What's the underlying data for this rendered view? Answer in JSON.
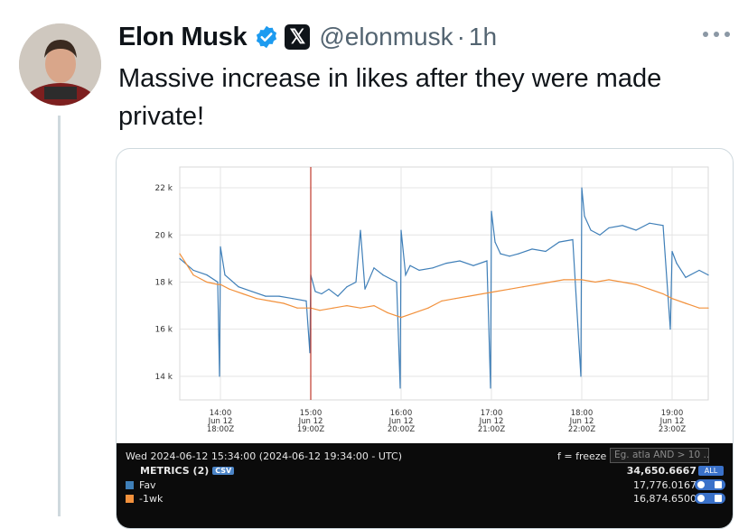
{
  "tweet": {
    "author_name": "Elon Musk",
    "handle": "@elonmusk",
    "separator": "·",
    "time": "1h",
    "x_badge": "𝕏",
    "text": "Massive increase in likes after they were made private!"
  },
  "icons": {
    "verified": "verified-badge-icon",
    "x_logo": "x-logo-icon",
    "more": "more-options-icon"
  },
  "colors": {
    "fav": "#3f7fb8",
    "minus_1wk": "#f2913c",
    "marker": "#c0392b",
    "verified": "#1d9bf0"
  },
  "chart_data": {
    "type": "line",
    "ylim": [
      13000,
      22500
    ],
    "yticks": [
      "14 k",
      "16 k",
      "18 k",
      "20 k",
      "22 k"
    ],
    "ytick_values": [
      14000,
      16000,
      18000,
      20000,
      22000
    ],
    "xticks": [
      {
        "time": "14:00",
        "date": "Jun 12",
        "utc": "18:00Z"
      },
      {
        "time": "15:00",
        "date": "Jun 12",
        "utc": "19:00Z"
      },
      {
        "time": "16:00",
        "date": "Jun 12",
        "utc": "20:00Z"
      },
      {
        "time": "17:00",
        "date": "Jun 12",
        "utc": "21:00Z"
      },
      {
        "time": "18:00",
        "date": "Jun 12",
        "utc": "22:00Z"
      },
      {
        "time": "19:00",
        "date": "Jun 12",
        "utc": "23:00Z"
      }
    ],
    "x_range_hours": [
      13.55,
      19.4
    ],
    "marker_hour": 15.0,
    "grid": true,
    "series": [
      {
        "name": "Fav",
        "x": [
          13.55,
          13.7,
          13.85,
          13.97,
          13.99,
          14.0,
          14.05,
          14.2,
          14.35,
          14.5,
          14.65,
          14.8,
          14.95,
          14.99,
          15.0,
          15.05,
          15.12,
          15.2,
          15.3,
          15.4,
          15.5,
          15.55,
          15.6,
          15.7,
          15.8,
          15.95,
          15.99,
          16.0,
          16.05,
          16.1,
          16.2,
          16.35,
          16.5,
          16.65,
          16.8,
          16.95,
          16.99,
          17.0,
          17.04,
          17.1,
          17.2,
          17.3,
          17.45,
          17.6,
          17.75,
          17.9,
          17.99,
          18.0,
          18.03,
          18.1,
          18.2,
          18.3,
          18.45,
          18.6,
          18.75,
          18.9,
          18.98,
          19.0,
          19.05,
          19.15,
          19.3,
          19.4
        ],
        "values": [
          19000,
          18500,
          18300,
          18000,
          14000,
          19500,
          18300,
          17800,
          17600,
          17400,
          17400,
          17300,
          17200,
          15000,
          18300,
          17600,
          17500,
          17700,
          17400,
          17800,
          18000,
          20200,
          17700,
          18600,
          18300,
          18000,
          13500,
          20200,
          18300,
          18700,
          18500,
          18600,
          18800,
          18900,
          18700,
          18900,
          13500,
          21000,
          19700,
          19200,
          19100,
          19200,
          19400,
          19300,
          19700,
          19800,
          14000,
          22000,
          20800,
          20200,
          20000,
          20300,
          20400,
          20200,
          20500,
          20400,
          16000,
          19300,
          18800,
          18200,
          18500,
          18300
        ]
      },
      {
        "name": "-1wk",
        "x": [
          13.55,
          13.7,
          13.85,
          13.97,
          14.0,
          14.1,
          14.25,
          14.4,
          14.55,
          14.7,
          14.85,
          15.0,
          15.1,
          15.25,
          15.4,
          15.55,
          15.7,
          15.85,
          16.0,
          16.15,
          16.3,
          16.45,
          16.6,
          16.75,
          16.9,
          17.05,
          17.2,
          17.35,
          17.5,
          17.65,
          17.8,
          17.95,
          18.0,
          18.15,
          18.3,
          18.45,
          18.6,
          18.75,
          18.9,
          19.0,
          19.15,
          19.3,
          19.4
        ],
        "values": [
          19200,
          18300,
          18000,
          17900,
          17900,
          17700,
          17500,
          17300,
          17200,
          17100,
          16900,
          16900,
          16800,
          16900,
          17000,
          16900,
          17000,
          16700,
          16500,
          16700,
          16900,
          17200,
          17300,
          17400,
          17500,
          17600,
          17700,
          17800,
          17900,
          18000,
          18100,
          18100,
          18100,
          18000,
          18100,
          18000,
          17900,
          17700,
          17500,
          17300,
          17100,
          16900,
          16900
        ]
      }
    ]
  },
  "metrics": {
    "timestamp": "Wed 2024-06-12 15:34:00 (2024-06-12 19:34:00 - UTC)",
    "freeze_hint": "f = freeze",
    "query_placeholder": "Eg. atla AND > 10 ..",
    "title": "METRICS (2)",
    "csv_label": "CSV",
    "total": "34,650.6667",
    "all_label": "ALL",
    "rows": [
      {
        "label": "Fav",
        "value": "17,776.0167"
      },
      {
        "label": "-1wk",
        "value": "16,874.6500"
      }
    ]
  }
}
